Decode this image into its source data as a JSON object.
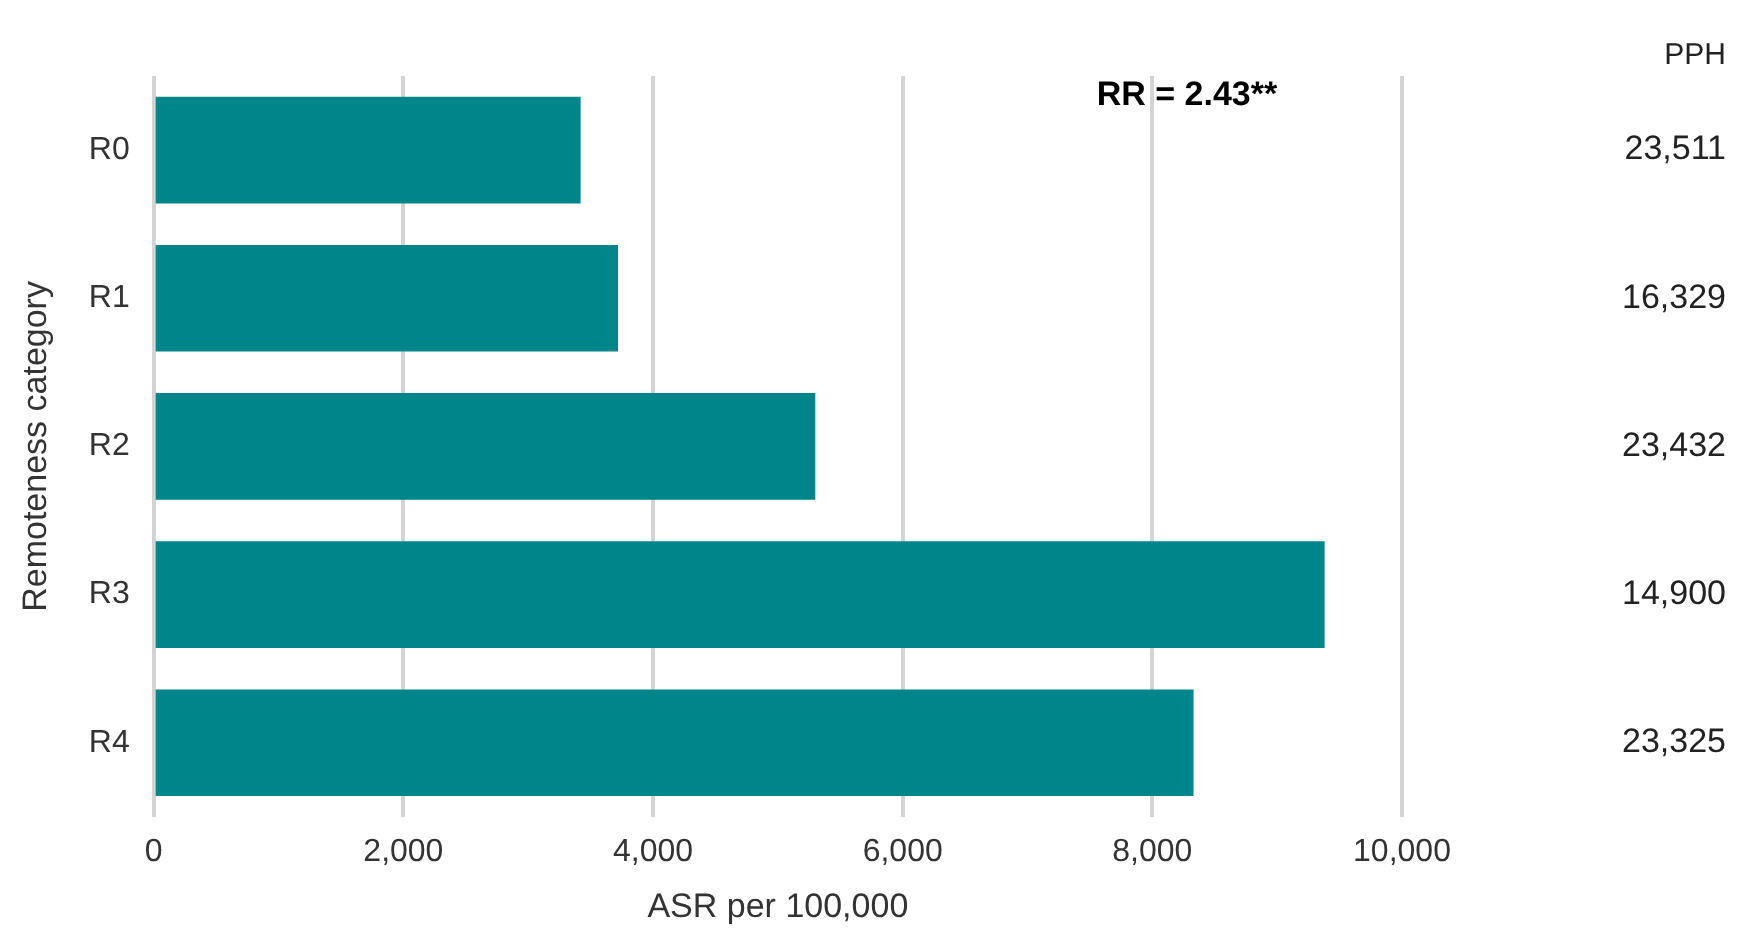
{
  "chart_data": {
    "type": "bar",
    "orientation": "horizontal",
    "xlabel": "ASR per 100,000",
    "ylabel": "Remoteness category",
    "categories": [
      "R0",
      "R1",
      "R2",
      "R3",
      "R4"
    ],
    "values": [
      3420,
      3720,
      5300,
      9380,
      8330
    ],
    "color": "#00868a",
    "xlim": [
      0,
      10000
    ],
    "xticks": [
      {
        "value": 0,
        "label": "0"
      },
      {
        "value": 2000,
        "label": "2,000"
      },
      {
        "value": 4000,
        "label": "4,000"
      },
      {
        "value": 6000,
        "label": "6,000"
      },
      {
        "value": 8000,
        "label": "8,000"
      },
      {
        "value": 10000,
        "label": "10,000"
      }
    ],
    "grid": "x",
    "legend": false,
    "annotations": [
      "PPH",
      "RR = 2.43**",
      "23,511",
      "16,329",
      "23,432",
      "14,900",
      "23,325"
    ]
  }
}
